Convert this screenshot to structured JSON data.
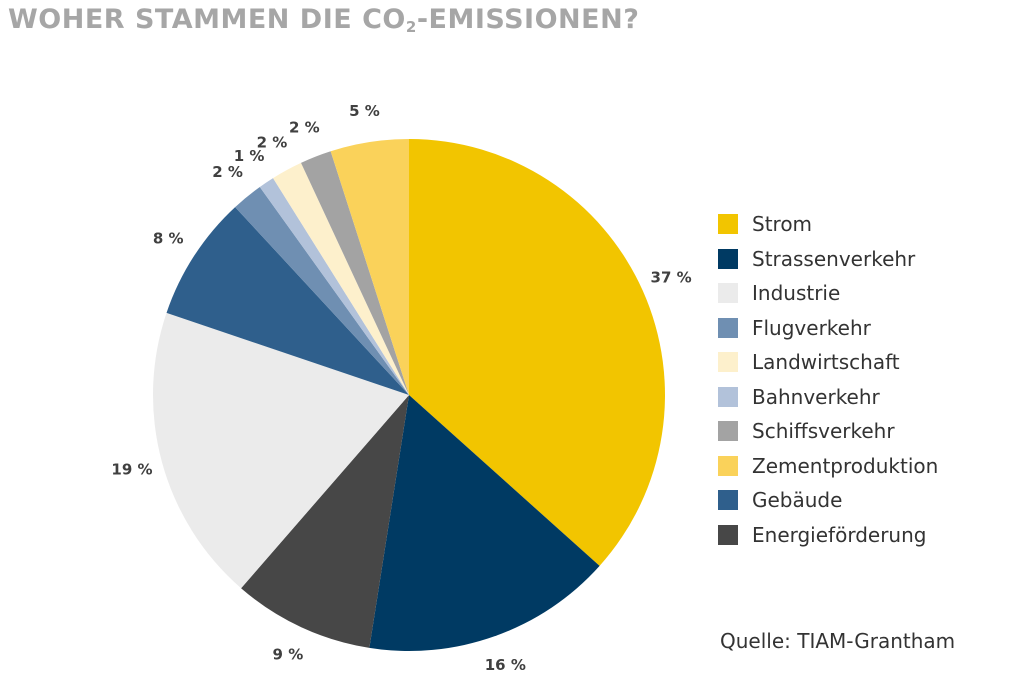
{
  "title": {
    "prefix": "WOHER STAMMEN DIE CO",
    "subscript": "2",
    "suffix": "-EMISSIONEN?"
  },
  "source": "Quelle: TIAM-Grantham",
  "chart_data": {
    "type": "pie",
    "start": "top, clockwise",
    "legend_position": "right",
    "slices": [
      {
        "name": "Strom",
        "value": 37,
        "label": "37 %",
        "color": "#f2c500"
      },
      {
        "name": "Strassenverkehr",
        "value": 16,
        "label": "16 %",
        "color": "#003a63"
      },
      {
        "name": "Energieförderung",
        "value": 9,
        "label": "9 %",
        "color": "#474747"
      },
      {
        "name": "Industrie",
        "value": 19,
        "label": "19 %",
        "color": "#ebebeb"
      },
      {
        "name": "Gebäude",
        "value": 8,
        "label": "8 %",
        "color": "#2f5f8c"
      },
      {
        "name": "Flugverkehr",
        "value": 2,
        "label": "2 %",
        "color": "#6f8fb2"
      },
      {
        "name": "Bahnverkehr",
        "value": 1,
        "label": "1 %",
        "color": "#b2c2da"
      },
      {
        "name": "Landwirtschaft",
        "value": 2,
        "label": "2 %",
        "color": "#fdf0cc"
      },
      {
        "name": "Schiffsverkehr",
        "value": 2,
        "label": "2 %",
        "color": "#a3a3a3"
      },
      {
        "name": "Zementproduktion",
        "value": 5,
        "label": "5 %",
        "color": "#fad25a"
      }
    ],
    "legend": [
      {
        "name": "Strom",
        "color": "#f2c500"
      },
      {
        "name": "Strassenverkehr",
        "color": "#003a63"
      },
      {
        "name": "Industrie",
        "color": "#ebebeb"
      },
      {
        "name": "Flugverkehr",
        "color": "#6f8fb2"
      },
      {
        "name": "Landwirtschaft",
        "color": "#fdf0cc"
      },
      {
        "name": "Bahnverkehr",
        "color": "#b2c2da"
      },
      {
        "name": "Schiffsverkehr",
        "color": "#a3a3a3"
      },
      {
        "name": "Zementproduktion",
        "color": "#fad25a"
      },
      {
        "name": "Gebäude",
        "color": "#2f5f8c"
      },
      {
        "name": "Energieförderung",
        "color": "#474747"
      }
    ]
  }
}
